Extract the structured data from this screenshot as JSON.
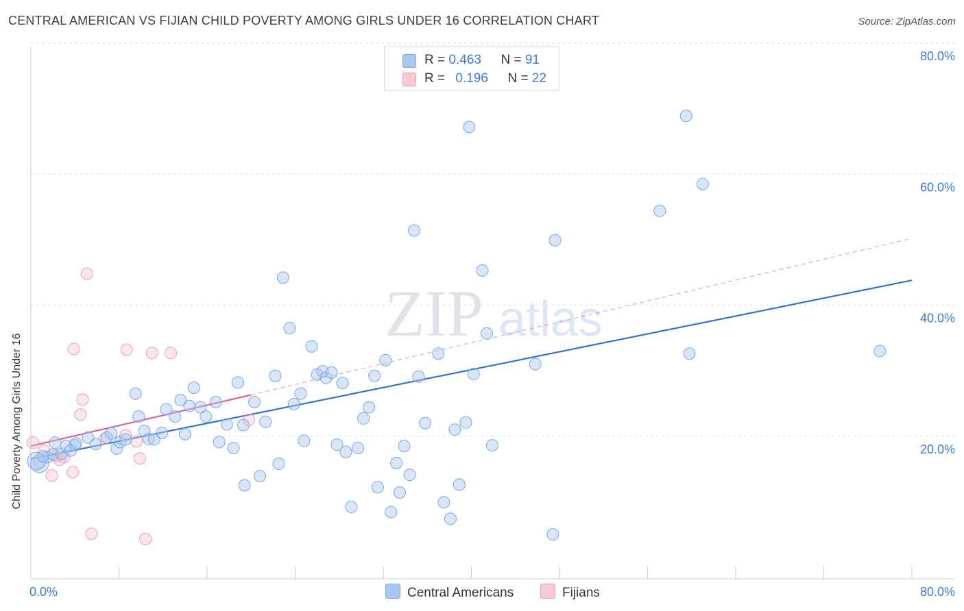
{
  "header": {
    "title": "CENTRAL AMERICAN VS FIJIAN CHILD POVERTY AMONG GIRLS UNDER 16 CORRELATION CHART",
    "source": "Source: ZipAtlas.com"
  },
  "watermark": {
    "zip": "ZIP",
    "atlas": "atlas"
  },
  "legend_top": [
    {
      "r_label": "R = ",
      "r_value": "0.463",
      "n_label": "N = ",
      "n_value": "91",
      "color": "#a9c8f0"
    },
    {
      "r_label": "R = ",
      "r_value": "0.196",
      "n_label": "N = ",
      "n_value": "22",
      "color": "#f7b9cb"
    }
  ],
  "legend_bottom": [
    {
      "label": "Central Americans",
      "color": "#a9c8f0"
    },
    {
      "label": "Fijians",
      "color": "#f7b9cb"
    }
  ],
  "colors": {
    "central_fill": "rgba(169,200,240,0.45)",
    "central_stroke": "#7aa7e0",
    "central_line": "#2f72d0",
    "fijian_fill": "rgba(247,185,203,0.35)",
    "fijian_stroke": "#ee9ab4",
    "fijian_line": "#e0648e",
    "grid": "#dddddd",
    "tick_text": "#3b78d6"
  },
  "chart_data": {
    "type": "scatter",
    "title": "CENTRAL AMERICAN VS FIJIAN CHILD POVERTY AMONG GIRLS UNDER 16 CORRELATION CHART",
    "xlabel": "",
    "ylabel": "Child Poverty Among Girls Under 16",
    "xlim": [
      0,
      80
    ],
    "ylim": [
      0,
      80
    ],
    "x_tick_labels": [
      "0.0%",
      "80.0%"
    ],
    "y_tick_labels": [
      "20.0%",
      "40.0%",
      "60.0%",
      "80.0%"
    ],
    "y_ticks": [
      20,
      40,
      60,
      80
    ],
    "grid": true,
    "legend_position": "top-center",
    "series": [
      {
        "name": "Central Americans",
        "points": [
          [
            0.8,
            15.8
          ],
          [
            1.5,
            16.8
          ],
          [
            2,
            17.2
          ],
          [
            2.2,
            19
          ],
          [
            2.8,
            17.3
          ],
          [
            3.2,
            18.5
          ],
          [
            4,
            18.6
          ],
          [
            4.1,
            18.9
          ],
          [
            5.2,
            19.8
          ],
          [
            5.9,
            18.8
          ],
          [
            6.9,
            19.8
          ],
          [
            7.3,
            20.4
          ],
          [
            7.8,
            18.1
          ],
          [
            8.1,
            19.1
          ],
          [
            8.6,
            19.5
          ],
          [
            9.5,
            26.5
          ],
          [
            9.8,
            23
          ],
          [
            10.3,
            20.8
          ],
          [
            10.7,
            19.6
          ],
          [
            11.2,
            19.5
          ],
          [
            11.9,
            20.5
          ],
          [
            12.3,
            24.1
          ],
          [
            13.1,
            23
          ],
          [
            13.6,
            25.5
          ],
          [
            14,
            20.3
          ],
          [
            14.4,
            24.6
          ],
          [
            14.8,
            27.4
          ],
          [
            15.4,
            24.4
          ],
          [
            15.9,
            23
          ],
          [
            16.8,
            25.2
          ],
          [
            17.1,
            19.1
          ],
          [
            17.8,
            21.8
          ],
          [
            18.4,
            18.2
          ],
          [
            18.8,
            28.2
          ],
          [
            19.3,
            21.7
          ],
          [
            19.4,
            12.5
          ],
          [
            20.3,
            25.2
          ],
          [
            20.8,
            13.9
          ],
          [
            21.3,
            22.2
          ],
          [
            22.2,
            29.2
          ],
          [
            22.5,
            15.8
          ],
          [
            22.9,
            44.2
          ],
          [
            23.5,
            36.5
          ],
          [
            23.9,
            24.9
          ],
          [
            24.5,
            26.5
          ],
          [
            24.8,
            19.3
          ],
          [
            25.5,
            33.7
          ],
          [
            26,
            29.4
          ],
          [
            26.5,
            29.9
          ],
          [
            26.8,
            28.9
          ],
          [
            27.3,
            29.7
          ],
          [
            27.8,
            18.7
          ],
          [
            28.3,
            28.1
          ],
          [
            28.6,
            17.6
          ],
          [
            29.1,
            9.2
          ],
          [
            29.7,
            18.2
          ],
          [
            30.2,
            22.7
          ],
          [
            30.7,
            24.4
          ],
          [
            31.2,
            29.2
          ],
          [
            31.5,
            12.2
          ],
          [
            32.2,
            31.6
          ],
          [
            32.7,
            8.4
          ],
          [
            33.2,
            15.9
          ],
          [
            33.5,
            11.4
          ],
          [
            33.9,
            18.5
          ],
          [
            34.4,
            14.1
          ],
          [
            34.8,
            51.4
          ],
          [
            35.2,
            29.1
          ],
          [
            35.8,
            22
          ],
          [
            37,
            32.6
          ],
          [
            37.5,
            9.9
          ],
          [
            38.1,
            7.4
          ],
          [
            38.5,
            21
          ],
          [
            38.9,
            12.6
          ],
          [
            39.5,
            22.1
          ],
          [
            39.8,
            67.2
          ],
          [
            40.2,
            29.5
          ],
          [
            41,
            45.3
          ],
          [
            41.4,
            35.7
          ],
          [
            41.9,
            18.6
          ],
          [
            45.8,
            31
          ],
          [
            47.4,
            5
          ],
          [
            47.6,
            49.9
          ],
          [
            57.1,
            54.4
          ],
          [
            59.5,
            68.9
          ],
          [
            59.8,
            32.6
          ],
          [
            61,
            58.5
          ],
          [
            77.1,
            33
          ],
          [
            0.5,
            16.2
          ],
          [
            1.1,
            16.9
          ],
          [
            3.6,
            17.8
          ]
        ]
      },
      {
        "name": "Fijians",
        "points": [
          [
            0.2,
            19
          ],
          [
            0.8,
            16
          ],
          [
            1.2,
            17.8
          ],
          [
            1.9,
            14
          ],
          [
            2.3,
            17
          ],
          [
            2.6,
            16.4
          ],
          [
            3,
            16.8
          ],
          [
            3.8,
            14.5
          ],
          [
            3.9,
            33.3
          ],
          [
            4.7,
            25.6
          ],
          [
            5.1,
            44.8
          ],
          [
            4.5,
            23.3
          ],
          [
            5.5,
            5.1
          ],
          [
            6.7,
            19.6
          ],
          [
            8.6,
            20.1
          ],
          [
            8.7,
            33.2
          ],
          [
            9.6,
            19.2
          ],
          [
            9.9,
            16.6
          ],
          [
            10.4,
            4.3
          ],
          [
            11,
            32.7
          ],
          [
            12.7,
            32.7
          ],
          [
            19.8,
            22.5
          ]
        ]
      }
    ],
    "trendlines": [
      {
        "series": "Central Americans",
        "from": [
          0,
          16.5
        ],
        "to": [
          80,
          43.8
        ]
      },
      {
        "series": "Fijians",
        "solid_from": [
          0,
          18.5
        ],
        "solid_to": [
          20,
          26.3
        ],
        "dashed_to": [
          80,
          50.2
        ]
      }
    ]
  }
}
